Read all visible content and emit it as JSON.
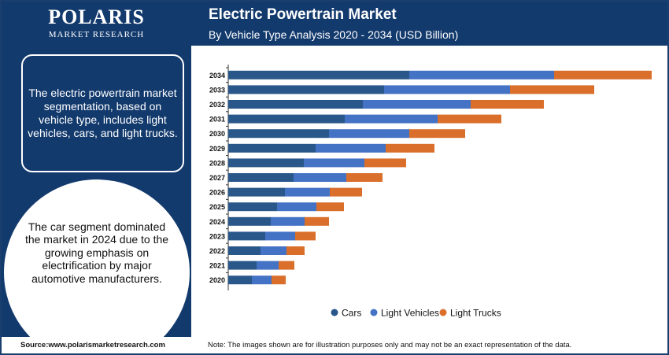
{
  "brand": {
    "name": "POLARIS",
    "tagline": "MARKET RESEARCH"
  },
  "left_panel": {
    "info_text": "The electric powertrain market segmentation, based on vehicle type, includes light vehicles, cars, and light trucks.",
    "circle_text": "The car segment dominated the market in 2024 due to the growing emphasis on electrification by major automotive manufacturers."
  },
  "header": {
    "title": "Electric Powertrain Market",
    "subtitle": "By Vehicle Type Analysis 2020 - 2034 (USD Billion)"
  },
  "footer": {
    "source": "Source:www.polarismarketresearch.com",
    "note": "Note: The images shown are for illustration purposes only and may not be an exact representation of the data."
  },
  "colors": {
    "navy": "#133a6d",
    "cars": "#2a5789",
    "light_vehicles": "#4472c4",
    "light_trucks": "#d96f2b"
  },
  "chart_data": {
    "type": "bar",
    "orientation": "horizontal",
    "stacked": true,
    "title": "Electric Powertrain Market",
    "subtitle": "By Vehicle Type Analysis 2020 - 2034 (USD Billion)",
    "categories": [
      "2020",
      "2021",
      "2022",
      "2023",
      "2024",
      "2025",
      "2026",
      "2027",
      "2028",
      "2029",
      "2030",
      "2031",
      "2032",
      "2033",
      "2034"
    ],
    "series": [
      {
        "name": "Cars",
        "color": "#2a5789",
        "values": [
          30,
          36,
          41,
          47,
          54,
          62,
          72,
          83,
          96,
          111,
          128,
          148,
          171,
          198,
          230
        ]
      },
      {
        "name": "Light Vehicles",
        "color": "#4472c4",
        "values": [
          25,
          28,
          33,
          38,
          43,
          50,
          57,
          67,
          77,
          89,
          102,
          118,
          137,
          160,
          184
        ]
      },
      {
        "name": "Light Trucks",
        "color": "#d96f2b",
        "values": [
          18,
          20,
          23,
          26,
          31,
          35,
          41,
          46,
          53,
          62,
          71,
          81,
          93,
          107,
          124
        ]
      }
    ],
    "legend": "bottom",
    "grid": false,
    "xaxis_labels_shown": false
  }
}
